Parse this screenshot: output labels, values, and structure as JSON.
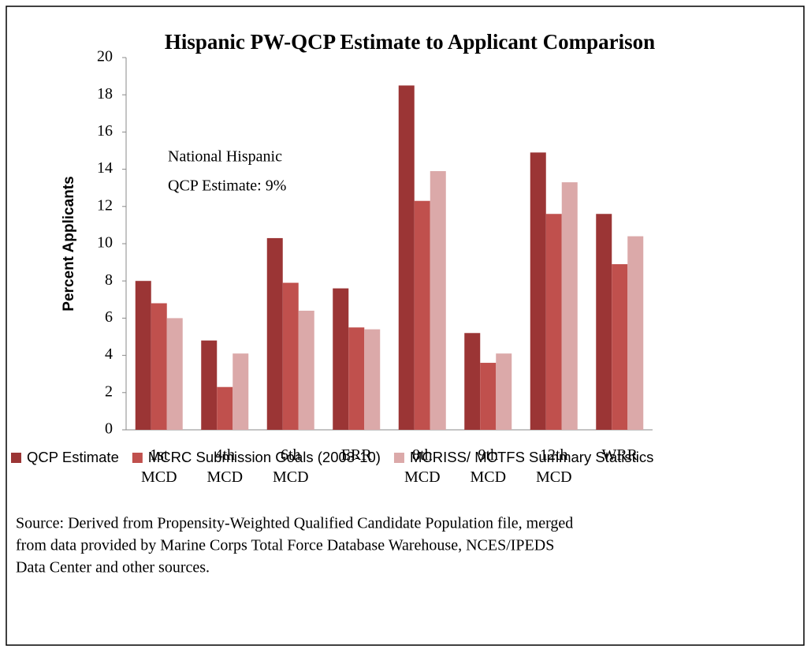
{
  "chart_data": {
    "type": "bar",
    "title": "Hispanic PW-QCP Estimate to Applicant Comparison",
    "y_label": "Percent Applicants",
    "annotation": [
      "National Hispanic",
      "QCP Estimate:  9%"
    ],
    "source": [
      "Source:  Derived  from Propensity-Weighted  Qualified Candidate Population file, merged",
      "from data provided by Marine Corps Total Force Database Warehouse, NCES/IPEDS",
      "Data Center and other sources."
    ],
    "categories": [
      "1st MCD",
      "4th MCD",
      "6th MCD",
      "ERR",
      "8th MCD",
      "9th MCD",
      "12th MCD",
      "WRR"
    ],
    "series": [
      {
        "name": "QCP Estimate",
        "color": "#9b3535",
        "values": [
          8.0,
          4.8,
          10.3,
          7.6,
          18.5,
          5.2,
          14.9,
          11.6
        ]
      },
      {
        "name": "MCRC Submission Goals (2008-10)",
        "color": "#c0504d",
        "values": [
          6.8,
          2.3,
          7.9,
          5.5,
          12.3,
          3.6,
          11.6,
          8.9
        ]
      },
      {
        "name": "MCRISS/ MCTFS Summary Statistics",
        "color": "#dba9a9",
        "values": [
          6.0,
          4.1,
          6.4,
          5.4,
          13.9,
          4.1,
          13.3,
          10.4
        ]
      }
    ],
    "ylim": [
      0,
      20
    ],
    "yticks": [
      0,
      2,
      4,
      6,
      8,
      10,
      12,
      14,
      16,
      18,
      20
    ],
    "legend": "bottom"
  }
}
